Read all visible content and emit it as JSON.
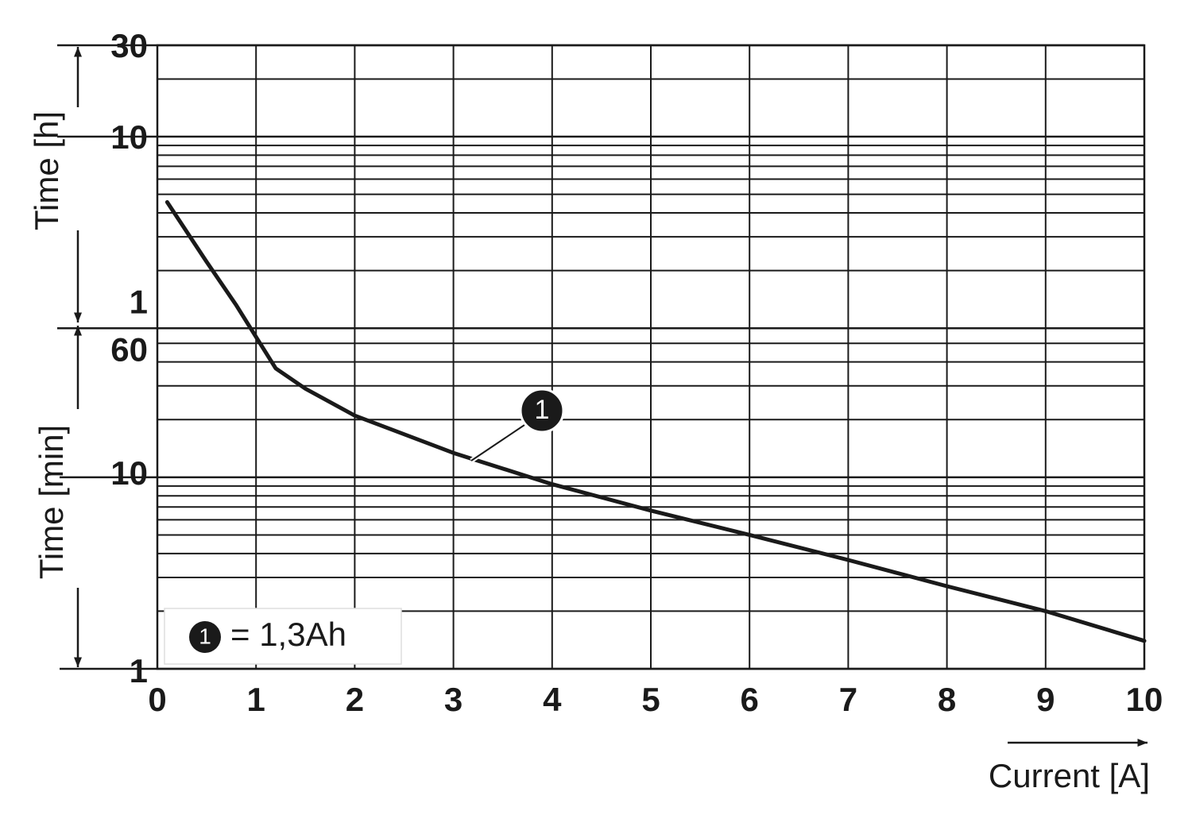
{
  "chart_data": {
    "type": "line",
    "x_label": "Current [A]",
    "y_label_hours": "Time [h]",
    "y_label": "Time [min]",
    "x": [
      0.1,
      0.5,
      0.8,
      1.0,
      1.2,
      1.5,
      2.0,
      3.0,
      4.0,
      5.0,
      6.0,
      7.0,
      8.0,
      9.0,
      10.0
    ],
    "series": [
      {
        "name": "= 1,3Ah",
        "marker": "1",
        "color": "#1a1a1a",
        "values": [
          273,
          133,
          79,
          54,
          37,
          29,
          21,
          13.4,
          9.2,
          6.7,
          5.0,
          3.7,
          2.7,
          2.0,
          1.4
        ]
      }
    ],
    "xlim": [
      0,
      10
    ],
    "xticks": [
      0,
      1,
      2,
      3,
      4,
      5,
      6,
      7,
      8,
      9,
      10
    ],
    "ylim": [
      1,
      1800
    ],
    "log_y": true,
    "grid": true,
    "yticks": [
      1,
      10,
      60
    ],
    "yticks_hours": [
      {
        "value": 60,
        "label": "1"
      },
      {
        "value": 600,
        "label": "10"
      },
      {
        "value": 1800,
        "label": "30"
      }
    ],
    "y_minor_ticks": [
      2,
      3,
      4,
      5,
      6,
      7,
      8,
      9,
      20,
      30,
      40,
      50,
      120,
      180,
      240,
      300,
      360,
      420,
      480,
      540,
      1200
    ]
  }
}
